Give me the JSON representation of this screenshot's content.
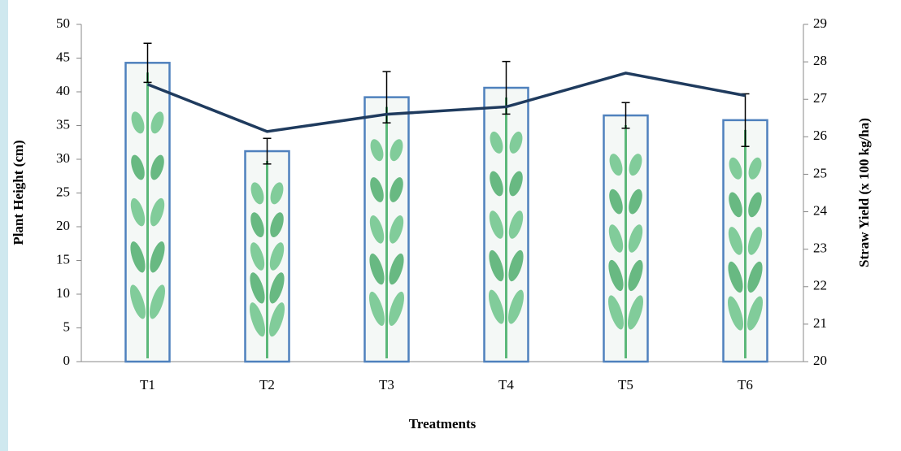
{
  "chart_data": {
    "type": "bar-line",
    "categories": [
      "T1",
      "T2",
      "T3",
      "T4",
      "T5",
      "T6"
    ],
    "x_label": "Treatments",
    "y_label": "Plant Height (cm)",
    "y2_label": "Straw Yield (x 100 kg/ha)",
    "series": [
      {
        "type": "bar",
        "color": "#4f81bd",
        "values": [
          44.3,
          31.2,
          39.2,
          40.6,
          36.5,
          35.8
        ],
        "errors": [
          2.9,
          1.9,
          3.8,
          3.9,
          1.9,
          3.9
        ]
      },
      {
        "type": "line",
        "axis": "y2",
        "color": "#1f3b5e",
        "values": [
          27.4,
          26.14,
          26.6,
          26.8,
          27.7,
          27.1
        ]
      }
    ],
    "ylim": [
      0,
      50
    ],
    "yticks": [
      0,
      5,
      10,
      15,
      20,
      25,
      30,
      35,
      40,
      45,
      50
    ],
    "y2lim": [
      20,
      29
    ],
    "y2ticks": [
      20,
      21,
      22,
      23,
      24,
      25,
      26,
      27,
      28,
      29
    ]
  }
}
